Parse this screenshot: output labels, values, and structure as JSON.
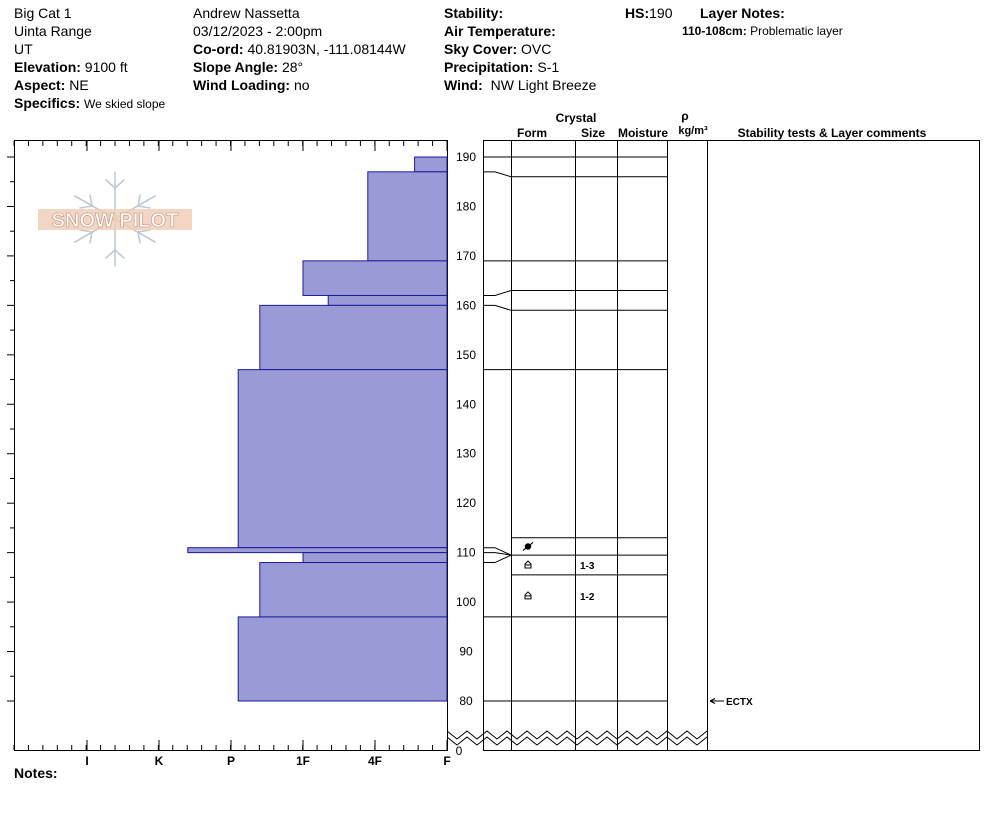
{
  "header": {
    "site": "Big Cat 1",
    "range": "Uinta Range",
    "state": "UT",
    "elevation_label": "Elevation:",
    "elevation": "9100 ft",
    "aspect_label": "Aspect:",
    "aspect": "NE",
    "specifics_label": "Specifics:",
    "specifics": "We skied slope",
    "observer": "Andrew Nassetta",
    "datetime": "03/12/2023 - 2:00pm",
    "coord_label": "Co-ord:",
    "coord": "40.81903N, -111.08144W",
    "slope_label": "Slope Angle:",
    "slope": "28°",
    "wind_loading_label": "Wind Loading:",
    "wind_loading": "no",
    "stability_label": "Stability:",
    "air_temp_label": "Air Temperature:",
    "sky_label": "Sky Cover:",
    "sky": "OVC",
    "precip_label": "Precipitation:",
    "precip": "S-1",
    "wind_label": "Wind:",
    "wind": "NW Light Breeze",
    "hs_label": "HS:",
    "hs": "190",
    "layer_notes_label": "Layer Notes:",
    "layer_note_range": "110-108cm:",
    "layer_note_text": "Problematic layer"
  },
  "columns": {
    "crystal": "Crystal",
    "form": "Form",
    "size": "Size",
    "moisture": "Moisture",
    "rho": "ρ",
    "density_unit": "kg/m³",
    "stability": "Stability tests & Layer comments"
  },
  "logo_text": "SNOW PILOT",
  "notes_label": "Notes:",
  "colors": {
    "layer_fill": "#9a9ad6",
    "layer_stroke": "#1a1a9e",
    "line": "#000000"
  },
  "chart_data": {
    "type": "bar",
    "title": "",
    "hardness_scale": [
      "I",
      "K",
      "P",
      "1F",
      "4F",
      "F"
    ],
    "xlabel": "",
    "ylabel": "",
    "ylim": [
      80,
      190
    ],
    "y_ticks": [
      190,
      180,
      170,
      160,
      150,
      140,
      130,
      120,
      110,
      100,
      90,
      80
    ],
    "y_bottom_label": "0",
    "note": "hardness values: 0=F (fist), 1=4F, 2=1F, 3=P, 4=K, 5=I",
    "layers": [
      {
        "top": 190,
        "bottom": 187,
        "hardness": 0.45
      },
      {
        "top": 187,
        "bottom": 169,
        "hardness": 1.1
      },
      {
        "top": 169,
        "bottom": 162,
        "hardness": 2.0
      },
      {
        "top": 162,
        "bottom": 160,
        "hardness": 1.65
      },
      {
        "top": 160,
        "bottom": 147,
        "hardness": 2.6
      },
      {
        "top": 147,
        "bottom": 111,
        "hardness": 2.9
      },
      {
        "top": 111,
        "bottom": 110,
        "hardness": 3.6
      },
      {
        "top": 110,
        "bottom": 108,
        "hardness": 2.0
      },
      {
        "top": 108,
        "bottom": 97,
        "hardness": 2.6
      },
      {
        "top": 97,
        "bottom": 80,
        "hardness": 2.9
      }
    ],
    "grain_rows": [
      {
        "top": 190,
        "bottom": 186
      },
      {
        "top": 186,
        "bottom": 169
      },
      {
        "top": 169,
        "bottom": 163
      },
      {
        "top": 163,
        "bottom": 159
      },
      {
        "top": 159,
        "bottom": 147
      },
      {
        "top": 147,
        "bottom": 113
      },
      {
        "top": 113,
        "bottom": 109.5,
        "form": "surface-hoar"
      },
      {
        "top": 109.5,
        "bottom": 105.5,
        "form": "facets",
        "size": "1-3"
      },
      {
        "top": 105.5,
        "bottom": 97,
        "form": "facets",
        "size": "1-2"
      },
      {
        "top": 97,
        "bottom": 80
      }
    ],
    "tests": [
      {
        "depth": 80,
        "label": "ECTX"
      }
    ]
  }
}
